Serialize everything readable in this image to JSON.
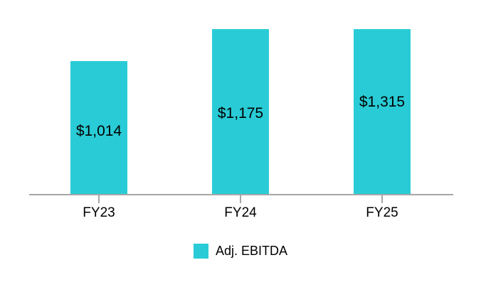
{
  "chart_data": {
    "type": "bar",
    "title": "",
    "xlabel": "",
    "ylabel": "",
    "categories": [
      "FY23",
      "FY24",
      "FY25"
    ],
    "series": [
      {
        "name": "Adj. EBITDA",
        "values": [
          1014,
          1175,
          1315
        ],
        "data_labels": [
          "$1,014",
          "$1,175",
          "$1,315"
        ],
        "color": "#29ccd6"
      }
    ],
    "legend": {
      "position": "bottom",
      "entries": [
        "Adj. EBITDA"
      ]
    },
    "axes": {
      "x": {
        "tick_labels": [
          "FY23",
          "FY24",
          "FY25"
        ],
        "line_color": "#a6a6a6",
        "ticks_visible": true
      },
      "y": {
        "visible": false
      }
    },
    "grid": false,
    "data_label_color": "#000000",
    "background_color": "#ffffff"
  }
}
